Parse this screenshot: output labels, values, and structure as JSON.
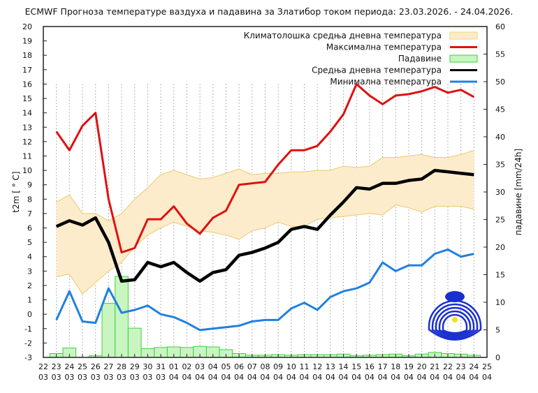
{
  "chart_data": {
    "type": "line",
    "title": "ECMWF Прогноза температуре ваздуха и падавина за Златибор током периода: 23.03.2026. - 24.04.2026.",
    "ylabel": "t2m [ ° C]",
    "y2label": "падавине [mm/24h]",
    "ylim": [
      -3,
      20
    ],
    "y2lim": [
      0,
      60
    ],
    "yticks": [
      "-3",
      "-2",
      "-1",
      "0",
      "1",
      "2",
      "3",
      "4",
      "5",
      "6",
      "7",
      "8",
      "9",
      "10",
      "11",
      "12",
      "13",
      "14",
      "15",
      "16",
      "17",
      "18",
      "19",
      "20"
    ],
    "y2ticks": [
      "0",
      "5",
      "10",
      "15",
      "20",
      "25",
      "30",
      "35",
      "40",
      "45",
      "50",
      "55",
      "60"
    ],
    "xticks": [
      [
        "22",
        "03"
      ],
      [
        "23",
        "03"
      ],
      [
        "24",
        "03"
      ],
      [
        "25",
        "03"
      ],
      [
        "26",
        "03"
      ],
      [
        "27",
        "03"
      ],
      [
        "28",
        "03"
      ],
      [
        "29",
        "03"
      ],
      [
        "30",
        "03"
      ],
      [
        "31",
        "03"
      ],
      [
        "01",
        "04"
      ],
      [
        "02",
        "04"
      ],
      [
        "03",
        "04"
      ],
      [
        "04",
        "04"
      ],
      [
        "05",
        "04"
      ],
      [
        "06",
        "04"
      ],
      [
        "07",
        "04"
      ],
      [
        "08",
        "04"
      ],
      [
        "09",
        "04"
      ],
      [
        "10",
        "04"
      ],
      [
        "11",
        "04"
      ],
      [
        "12",
        "04"
      ],
      [
        "13",
        "04"
      ],
      [
        "14",
        "04"
      ],
      [
        "15",
        "04"
      ],
      [
        "16",
        "04"
      ],
      [
        "17",
        "04"
      ],
      [
        "18",
        "04"
      ],
      [
        "19",
        "04"
      ],
      [
        "20",
        "04"
      ],
      [
        "21",
        "04"
      ],
      [
        "22",
        "04"
      ],
      [
        "23",
        "04"
      ],
      [
        "24",
        "04"
      ],
      [
        "25",
        "04"
      ]
    ],
    "grid": "vertical dotted",
    "legend_position": "top-right",
    "legend": [
      {
        "name": "Климатолошка средња дневна температура",
        "color": "#f0d080",
        "fill": "#fdeccb",
        "kind": "band"
      },
      {
        "name": "Максимална температура",
        "color": "#e01010",
        "kind": "line"
      },
      {
        "name": "Падавине",
        "color": "#40d040",
        "fill": "#c8f5c0",
        "kind": "bar"
      },
      {
        "name": "Средња дневна температура",
        "color": "#000000",
        "kind": "line"
      },
      {
        "name": "Минимална температура",
        "color": "#2080e0",
        "kind": "line"
      }
    ],
    "series": {
      "clim_upper": [
        7.8,
        8.3,
        7.0,
        7.0,
        6.5,
        7.0,
        8.0,
        8.8,
        9.7,
        10.0,
        9.7,
        9.4,
        9.5,
        9.8,
        10.1,
        9.7,
        9.8,
        9.8,
        9.9,
        9.9,
        10.0,
        10.0,
        10.3,
        10.2,
        10.3,
        10.9,
        10.9,
        11.0,
        11.1,
        10.9,
        10.9,
        11.1,
        11.4
      ],
      "clim_lower": [
        2.6,
        2.8,
        1.4,
        2.2,
        3.0,
        3.6,
        4.7,
        5.5,
        6.0,
        6.4,
        6.1,
        5.8,
        5.7,
        5.5,
        5.2,
        5.8,
        6.0,
        6.4,
        6.1,
        6.1,
        6.6,
        6.7,
        6.8,
        6.9,
        7.0,
        6.9,
        7.6,
        7.4,
        7.1,
        7.5,
        7.5,
        7.5,
        7.3
      ],
      "precip": [
        0.7,
        1.7,
        0,
        0.3,
        9.8,
        14.7,
        5.3,
        1.6,
        1.8,
        1.9,
        1.8,
        2.0,
        1.9,
        1.4,
        0.7,
        0.4,
        0.4,
        0.5,
        0.4,
        0.5,
        0.5,
        0.5,
        0.6,
        0.3,
        0.4,
        0.5,
        0.6,
        0.3,
        0.6,
        0.9,
        0.7,
        0.6,
        0.4
      ],
      "max": [
        12.7,
        11.4,
        13.1,
        14.0,
        8.0,
        4.3,
        4.6,
        6.6,
        6.6,
        7.5,
        6.3,
        5.6,
        6.7,
        7.2,
        9.0,
        9.1,
        9.2,
        10.4,
        11.4,
        11.4,
        11.7,
        12.7,
        13.9,
        16.0,
        15.2,
        14.6,
        15.2,
        15.3,
        15.5,
        15.8,
        15.4,
        15.6,
        15.1
      ],
      "mean": [
        6.1,
        6.5,
        6.2,
        6.7,
        5.0,
        2.3,
        2.4,
        3.6,
        3.3,
        3.6,
        2.9,
        2.3,
        2.9,
        3.1,
        4.1,
        4.3,
        4.6,
        5.0,
        5.9,
        6.1,
        5.9,
        6.9,
        7.8,
        8.8,
        8.7,
        9.1,
        9.1,
        9.3,
        9.4,
        10.0,
        9.9,
        9.8,
        9.7
      ],
      "min": [
        -0.4,
        1.6,
        -0.5,
        -0.6,
        1.8,
        0.1,
        0.3,
        0.6,
        0.0,
        -0.2,
        -0.6,
        -1.1,
        -1.0,
        -0.9,
        -0.8,
        -0.5,
        -0.4,
        -0.4,
        0.4,
        0.8,
        0.3,
        1.2,
        1.6,
        1.8,
        2.2,
        3.6,
        3.0,
        3.4,
        3.4,
        4.2,
        4.5,
        4.0,
        4.2
      ]
    }
  }
}
